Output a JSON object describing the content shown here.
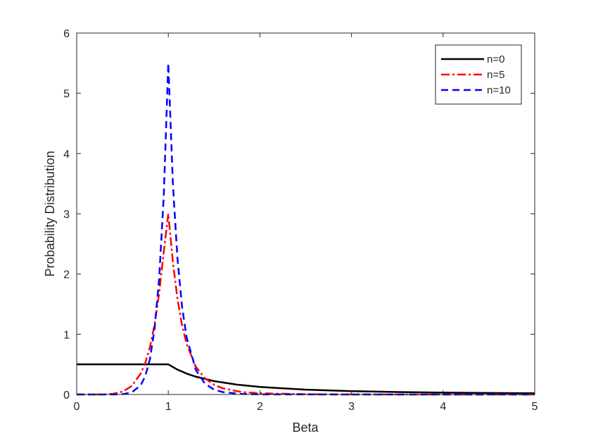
{
  "chart_data": {
    "type": "line",
    "title": "",
    "xlabel": "Beta",
    "ylabel": "Probability Distribution",
    "xlim": [
      0,
      5
    ],
    "ylim": [
      0,
      6
    ],
    "xticks": [
      0,
      1,
      2,
      3,
      4,
      5
    ],
    "yticks": [
      0,
      1,
      2,
      3,
      4,
      5,
      6
    ],
    "grid": false,
    "legend_position": "top-right",
    "series": [
      {
        "name": "n=0",
        "color": "#000000",
        "line_style": "solid",
        "x": [
          0,
          0.2,
          0.4,
          0.6,
          0.8,
          0.9,
          1.0,
          1.1,
          1.2,
          1.3,
          1.5,
          1.75,
          2.0,
          2.5,
          3.0,
          3.5,
          4.0,
          4.5,
          5.0
        ],
        "y": [
          0.5,
          0.5,
          0.5,
          0.5,
          0.5,
          0.5,
          0.5,
          0.413,
          0.347,
          0.296,
          0.222,
          0.163,
          0.125,
          0.08,
          0.056,
          0.041,
          0.031,
          0.025,
          0.02
        ]
      },
      {
        "name": "n=5",
        "color": "#ff0000",
        "line_style": "dash-dot",
        "x": [
          0,
          0.1,
          0.2,
          0.3,
          0.4,
          0.5,
          0.6,
          0.7,
          0.75,
          0.8,
          0.85,
          0.9,
          0.95,
          1.0,
          1.05,
          1.1,
          1.15,
          1.2,
          1.3,
          1.4,
          1.5,
          1.6,
          1.8,
          2.0,
          2.5,
          3.0,
          4.0,
          5.0
        ],
        "y": [
          0,
          0.0,
          0.0,
          0.002,
          0.012,
          0.047,
          0.14,
          0.35,
          0.53,
          0.79,
          1.16,
          1.68,
          2.36,
          3.0,
          2.2,
          1.59,
          1.15,
          0.84,
          0.46,
          0.27,
          0.16,
          0.1,
          0.04,
          0.02,
          0.004,
          0.001,
          0.0,
          0.0
        ]
      },
      {
        "name": "n=10",
        "color": "#0000ff",
        "line_style": "dashed",
        "x": [
          0,
          0.3,
          0.4,
          0.5,
          0.6,
          0.7,
          0.75,
          0.8,
          0.85,
          0.9,
          0.95,
          1.0,
          1.05,
          1.1,
          1.15,
          1.2,
          1.3,
          1.4,
          1.5,
          1.6,
          1.8,
          2.0,
          3.0,
          4.0,
          5.0
        ],
        "y": [
          0,
          0,
          0.0,
          0.005,
          0.033,
          0.155,
          0.31,
          0.59,
          1.09,
          1.92,
          3.28,
          5.5,
          3.5,
          2.26,
          1.46,
          0.95,
          0.41,
          0.18,
          0.08,
          0.038,
          0.008,
          0.002,
          0.0,
          0.0,
          0.0
        ]
      }
    ]
  }
}
